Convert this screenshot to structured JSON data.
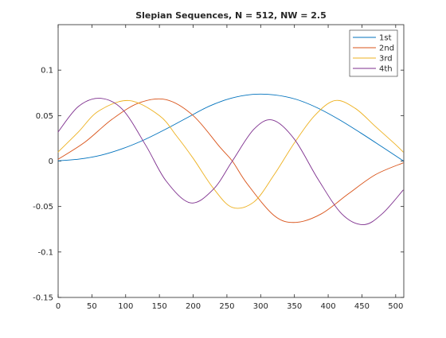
{
  "chart_data": {
    "type": "line",
    "title": "Slepian Sequences, N = 512, NW = 2.5",
    "xlabel": "",
    "ylabel": "",
    "xlim": [
      0,
      512
    ],
    "ylim": [
      -0.15,
      0.15
    ],
    "xticks": [
      0,
      50,
      100,
      150,
      200,
      250,
      300,
      350,
      400,
      450,
      500
    ],
    "yticks": [
      -0.15,
      -0.1,
      -0.05,
      0,
      0.05,
      0.1
    ],
    "ytick_labels": [
      "-0.15",
      "-0.1",
      "-0.05",
      "0",
      "0.05",
      "0.1"
    ],
    "grid": false,
    "legend_position": "top-right",
    "series": [
      {
        "name": "1st",
        "color": "#0072bd",
        "x": [
          0,
          32,
          64,
          96,
          128,
          160,
          192,
          224,
          256,
          288,
          320,
          352,
          384,
          416,
          448,
          480,
          511
        ],
        "y": [
          0.0003,
          0.0022,
          0.0065,
          0.0138,
          0.0235,
          0.0353,
          0.048,
          0.0604,
          0.069,
          0.0733,
          0.0728,
          0.068,
          0.0585,
          0.0457,
          0.031,
          0.0155,
          0.0003
        ]
      },
      {
        "name": "2nd",
        "color": "#d95319",
        "x": [
          0,
          40,
          80,
          120,
          160,
          200,
          240,
          258,
          280,
          320,
          352,
          390,
          430,
          470,
          511
        ],
        "y": [
          0.002,
          0.021,
          0.046,
          0.064,
          0.0675,
          0.05,
          0.015,
          0,
          -0.025,
          -0.06,
          -0.0675,
          -0.058,
          -0.036,
          -0.015,
          -0.002
        ]
      },
      {
        "name": "3rd",
        "color": "#edb120",
        "x": [
          0,
          30,
          60,
          105,
          150,
          175,
          200,
          230,
          258,
          290,
          320,
          350,
          380,
          410,
          440,
          470,
          500,
          511
        ],
        "y": [
          0.01,
          0.032,
          0.055,
          0.0665,
          0.05,
          0.028,
          0.003,
          -0.03,
          -0.051,
          -0.045,
          -0.015,
          0.02,
          0.05,
          0.0665,
          0.058,
          0.038,
          0.018,
          0.01
        ]
      },
      {
        "name": "4th",
        "color": "#7e2f8e",
        "x": [
          0,
          30,
          62,
          95,
          130,
          160,
          196,
          230,
          258,
          290,
          318,
          350,
          385,
          420,
          452,
          480,
          511
        ],
        "y": [
          0.032,
          0.06,
          0.069,
          0.057,
          0.017,
          -0.022,
          -0.046,
          -0.031,
          0,
          0.035,
          0.045,
          0.024,
          -0.02,
          -0.058,
          -0.07,
          -0.058,
          -0.032
        ]
      }
    ]
  }
}
